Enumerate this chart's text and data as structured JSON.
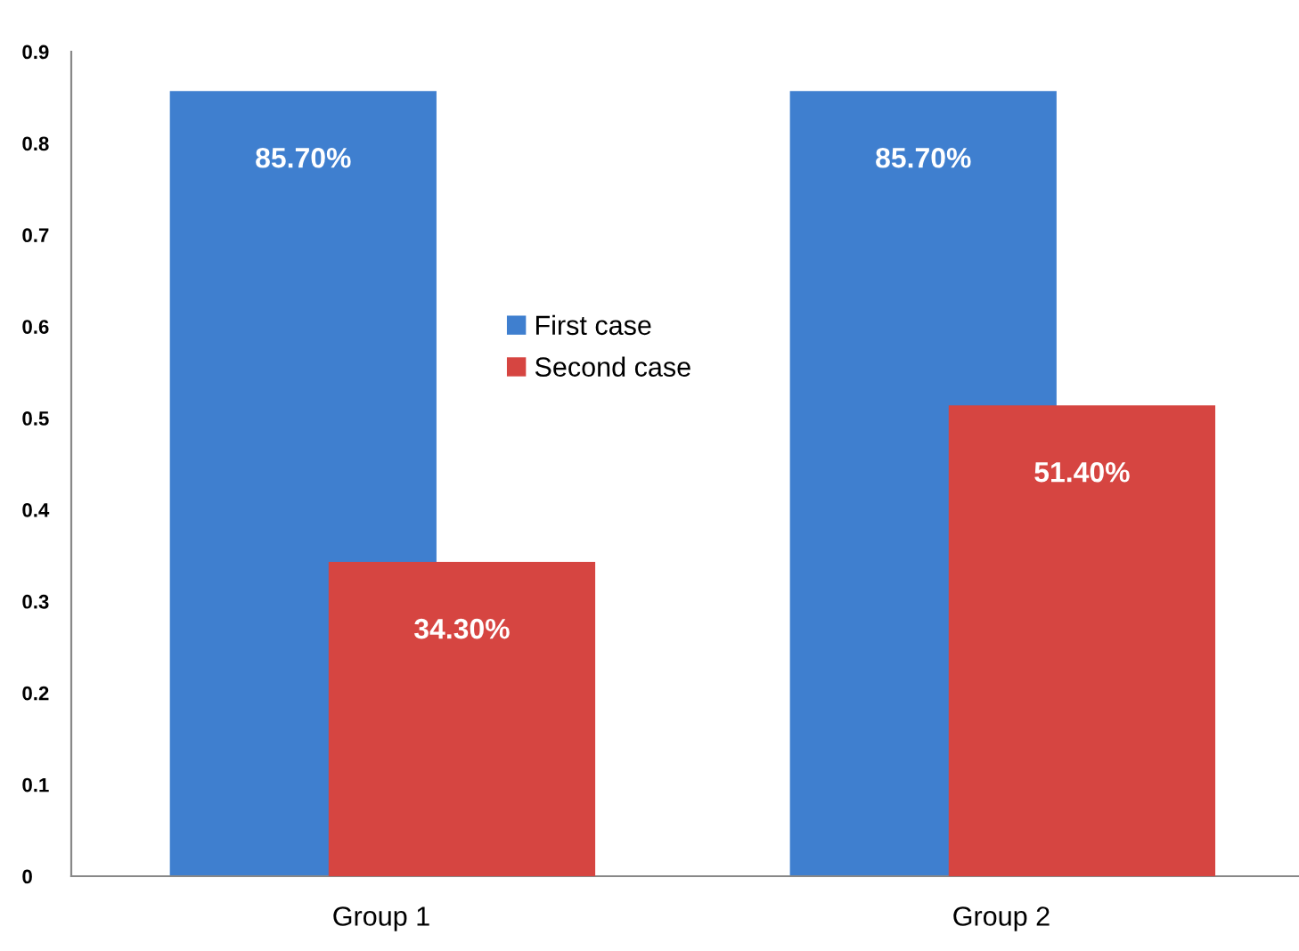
{
  "chart_data": {
    "type": "bar",
    "categories": [
      "Group 1",
      "Group 2"
    ],
    "series": [
      {
        "name": "First case",
        "color": "#3f7fcf",
        "values": [
          0.857,
          0.857
        ],
        "value_labels": [
          "85.70%",
          "85.70%"
        ]
      },
      {
        "name": "Second case",
        "color": "#d64541",
        "values": [
          0.343,
          0.514
        ],
        "value_labels": [
          "34.30%",
          "51.40%"
        ]
      }
    ],
    "ylim": [
      0,
      0.9
    ],
    "yticks": [
      0,
      0.1,
      0.2,
      0.3,
      0.4,
      0.5,
      0.6,
      0.7,
      0.8,
      0.9
    ],
    "grid": false,
    "legend": "center"
  }
}
